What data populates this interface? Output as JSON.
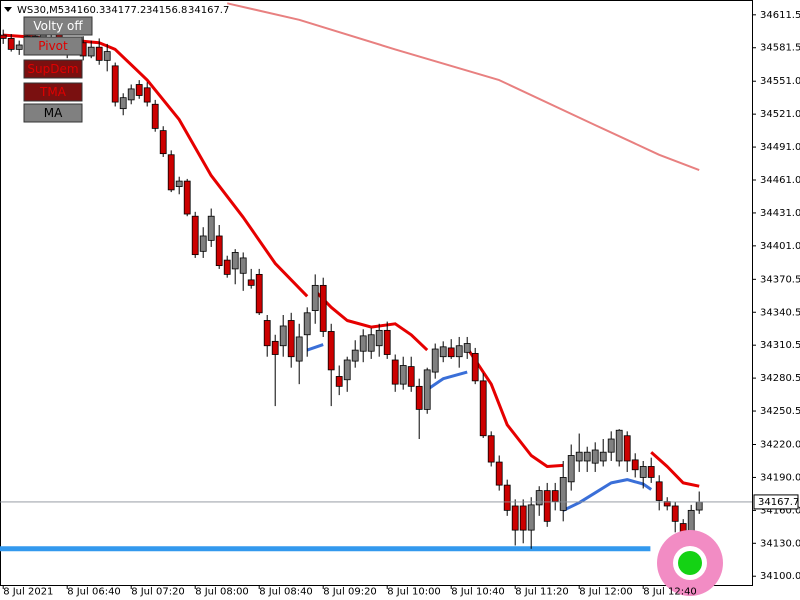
{
  "chart_data": {
    "type": "candlestick",
    "symbol": "WS30,M5",
    "open": [
      34593,
      34590,
      34580,
      34584,
      34592,
      34588,
      34594,
      34596,
      34584,
      34578,
      34586,
      34574,
      34582,
      34570,
      34565,
      34526,
      34534,
      34548,
      34545,
      34530,
      34506,
      34484,
      34455,
      34460,
      34428,
      34396,
      34406,
      34410,
      34388,
      34380,
      34376,
      34370,
      34375,
      34333,
      34314,
      34310,
      34333,
      34296,
      34320,
      34342,
      34365,
      34323,
      34282,
      34279,
      34296,
      34305,
      34305,
      34310,
      34324,
      34297,
      34275,
      34291,
      34273,
      34252,
      34286,
      34300,
      34308,
      34300,
      34304,
      34303,
      34278,
      34228,
      34204,
      34183,
      34164,
      34164,
      34142,
      34165,
      34178,
      34178,
      34160,
      34186,
      34205,
      34205,
      34203,
      34205,
      34213,
      34205,
      34228,
      34206,
      34190,
      34200,
      34186,
      34168,
      34164,
      34148,
      34125,
      34160.3
    ],
    "high": [
      34598,
      34594,
      34588,
      34596,
      34598,
      34597,
      34600,
      34598,
      34590,
      34590,
      34592,
      34588,
      34590,
      34585,
      34568,
      34540,
      34548,
      34552,
      34550,
      34534,
      34510,
      34488,
      34464,
      34462,
      34432,
      34418,
      34435,
      34420,
      34392,
      34398,
      34395,
      34380,
      34380,
      34338,
      34320,
      34338,
      34340,
      34330,
      34345,
      34375,
      34372,
      34330,
      34292,
      34300,
      34315,
      34325,
      34326,
      34330,
      34332,
      34302,
      34300,
      34300,
      34280,
      34290,
      34312,
      34314,
      34316,
      34318,
      34318,
      34308,
      34285,
      34232,
      34210,
      34188,
      34170,
      34170,
      34172,
      34182,
      34185,
      34185,
      34205,
      34220,
      34230,
      34218,
      34222,
      34225,
      34232,
      34234,
      34232,
      34212,
      34205,
      34208,
      34192,
      34172,
      34168,
      34152,
      34165,
      34177.2
    ],
    "low": [
      34585,
      34578,
      34575,
      34580,
      34586,
      34585,
      34588,
      34580,
      34572,
      34575,
      34570,
      34572,
      34566,
      34560,
      34528,
      34520,
      34530,
      34535,
      34528,
      34505,
      34482,
      34450,
      34448,
      34428,
      34390,
      34390,
      34400,
      34380,
      34372,
      34366,
      34360,
      34362,
      34338,
      34300,
      34255,
      34300,
      34290,
      34275,
      34300,
      34330,
      34318,
      34255,
      34265,
      34268,
      34290,
      34295,
      34298,
      34300,
      34298,
      34268,
      34270,
      34268,
      34225,
      34248,
      34280,
      34295,
      34298,
      34290,
      34298,
      34275,
      34226,
      34200,
      34178,
      34155,
      34128,
      34130,
      34125,
      34155,
      34145,
      34160,
      34150,
      34178,
      34195,
      34195,
      34195,
      34200,
      34205,
      34200,
      34195,
      34190,
      34180,
      34185,
      34160,
      34160,
      34140,
      34120,
      34118,
      34156.8
    ],
    "close": [
      34590,
      34580,
      34584,
      34592,
      34588,
      34594,
      34596,
      34584,
      34578,
      34586,
      34574,
      34582,
      34570,
      34578,
      34532,
      34536,
      34544,
      34538,
      34532,
      34508,
      34485,
      34452,
      34460,
      34430,
      34393,
      34410,
      34428,
      34383,
      34375,
      34395,
      34390,
      34365,
      34340,
      34310,
      34302,
      34328,
      34300,
      34318,
      34340,
      34365,
      34323,
      34288,
      34273,
      34297,
      34306,
      34319,
      34320,
      34324,
      34302,
      34275,
      34292,
      34273,
      34252,
      34288,
      34307,
      34309,
      34300,
      34310,
      34312,
      34278,
      34228,
      34204,
      34183,
      34160,
      34142,
      34142,
      34165,
      34178,
      34150,
      34168,
      34190,
      34210,
      34213,
      34213,
      34215,
      34213,
      34225,
      34233,
      34205,
      34197,
      34200,
      34190,
      34169,
      34164,
      34150,
      34123,
      34160,
      34167.7
    ],
    "up_color": "#808080",
    "down_color": "#cc0000",
    "lines": [
      {
        "color": "#e60000",
        "width": 3,
        "x": [
          0,
          6,
          12,
          14,
          18,
          22,
          26,
          30,
          34,
          38,
          39,
          39,
          41,
          43,
          46,
          49,
          51,
          53,
          54,
          58,
          61,
          63,
          66,
          68,
          70,
          71,
          81,
          83,
          85,
          87
        ],
        "values": [
          34593,
          34590,
          34586,
          34580,
          34552,
          34516,
          34465,
          34427,
          34385,
          34355,
          null,
          34360,
          34345,
          34333,
          34327,
          34330,
          34320,
          34306,
          null,
          34308,
          34275,
          34238,
          34210,
          34200,
          34201,
          null,
          34213,
          34200,
          34185,
          34182
        ]
      },
      {
        "color": "#3a6fd8",
        "width": 3,
        "x": [
          38,
          40,
          41,
          53,
          55,
          58,
          59,
          70,
          72,
          74,
          76,
          78,
          80,
          81
        ],
        "values": [
          34306,
          34311,
          null,
          34270,
          34280,
          34286,
          null,
          34160,
          34167,
          34176,
          34185,
          34188,
          34184,
          34179
        ]
      },
      {
        "color": "#e88080",
        "width": 2,
        "x": [
          28,
          37,
          49,
          62,
          74,
          82,
          87
        ],
        "values": [
          34622,
          34607,
          34580,
          34552,
          34511,
          34484,
          34470
        ]
      },
      {
        "color": "#3399ee",
        "width": 5,
        "x": [
          -0.4,
          80.9
        ],
        "values": [
          34125,
          34125
        ]
      }
    ],
    "xlim": [
      -0.4,
      93.6
    ],
    "ylim": [
      34092,
      34625
    ],
    "xticks": [
      {
        "value": 0,
        "label": "8 Jul 2021"
      },
      {
        "value": 8,
        "label": "8 Jul 06:40"
      },
      {
        "value": 16,
        "label": "8 Jul 07:20"
      },
      {
        "value": 24,
        "label": "8 Jul 08:00"
      },
      {
        "value": 32,
        "label": "8 Jul 08:40"
      },
      {
        "value": 40,
        "label": "8 Jul 09:20"
      },
      {
        "value": 48,
        "label": "8 Jul 10:00"
      },
      {
        "value": 56,
        "label": "8 Jul 10:40"
      },
      {
        "value": 64,
        "label": "8 Jul 11:20"
      },
      {
        "value": 72,
        "label": "8 Jul 12:00"
      },
      {
        "value": 80,
        "label": "8 Jul 12:40"
      }
    ],
    "yticks": [
      34611.5,
      34581.5,
      {
        "value": 34551,
        "label": "34551.0"
      },
      {
        "value": 34521,
        "label": "34521.0"
      },
      {
        "value": 34491,
        "label": "34491.0"
      },
      {
        "value": 34461,
        "label": "34461.0"
      },
      {
        "value": 34431,
        "label": "34431.0"
      },
      {
        "value": 34401,
        "label": "34401.0"
      },
      34370.5,
      34340.5,
      34310.5,
      34280.5,
      34250.5,
      {
        "value": 34220,
        "label": "34220.0"
      },
      {
        "value": 34190,
        "label": "34190.0"
      },
      {
        "value": 34160,
        "label": "34160.0"
      },
      {
        "value": 34130,
        "label": "34130.0"
      },
      {
        "value": 34100,
        "label": "34100.0"
      }
    ]
  },
  "buttons": [
    "Volty off",
    "Pivot",
    "SupDem",
    "TMA",
    "MA"
  ]
}
